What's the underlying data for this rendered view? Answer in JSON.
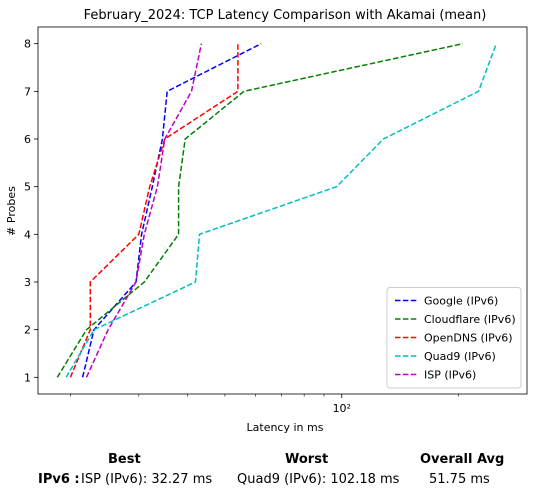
{
  "chart_data": {
    "type": "line",
    "title": "February_2024: TCP Latency Comparison with Akamai (mean)",
    "xlabel": "Latency in ms",
    "ylabel": "# Probes",
    "xscale": "log",
    "xlim": [
      16.5,
      300
    ],
    "ylim": [
      0.65,
      8.35
    ],
    "x_ticks": [
      {
        "value": 100,
        "label": "10²"
      }
    ],
    "y_ticks": [
      1,
      2,
      3,
      4,
      5,
      6,
      7,
      8
    ],
    "grid": false,
    "legend_position": "lower-right",
    "line_style": "dashed",
    "series": [
      {
        "name": "Google (IPv6)",
        "color": "#0000ff",
        "points": [
          [
            21.5,
            1
          ],
          [
            23,
            2
          ],
          [
            29.5,
            3
          ],
          [
            30.5,
            4
          ],
          [
            32.5,
            5
          ],
          [
            34.5,
            6
          ],
          [
            35.5,
            7
          ],
          [
            62,
            8
          ]
        ]
      },
      {
        "name": "Cloudflare (IPv6)",
        "color": "#008000",
        "points": [
          [
            18.5,
            1
          ],
          [
            22,
            2
          ],
          [
            31,
            3
          ],
          [
            38,
            4
          ],
          [
            38,
            5
          ],
          [
            39.5,
            6
          ],
          [
            56,
            7
          ],
          [
            205,
            8
          ]
        ]
      },
      {
        "name": "OpenDNS (IPv6)",
        "color": "#ff0000",
        "points": [
          [
            20,
            1
          ],
          [
            22.5,
            2
          ],
          [
            22.5,
            3
          ],
          [
            30,
            4
          ],
          [
            32,
            5
          ],
          [
            35,
            6
          ],
          [
            54,
            7
          ],
          [
            54,
            8
          ]
        ]
      },
      {
        "name": "Quad9 (IPv6)",
        "color": "#00bfbf",
        "points": [
          [
            19.5,
            1
          ],
          [
            23,
            2
          ],
          [
            42,
            3
          ],
          [
            43,
            4
          ],
          [
            97,
            5
          ],
          [
            128,
            6
          ],
          [
            225,
            7
          ],
          [
            250,
            8
          ]
        ]
      },
      {
        "name": "ISP (IPv6)",
        "color": "#bf00bf",
        "points": [
          [
            22,
            1
          ],
          [
            25,
            2
          ],
          [
            29.5,
            3
          ],
          [
            31,
            4
          ],
          [
            33.5,
            5
          ],
          [
            35,
            6
          ],
          [
            41,
            7
          ],
          [
            43.5,
            8
          ]
        ]
      }
    ]
  },
  "stats": {
    "headers": {
      "best": "Best",
      "worst": "Worst",
      "overall": "Overall Avg"
    },
    "row_label": "IPv6 :",
    "best": "ISP (IPv6): 32.27 ms",
    "worst": "Quad9 (IPv6): 102.18 ms",
    "overall": "51.75 ms"
  }
}
